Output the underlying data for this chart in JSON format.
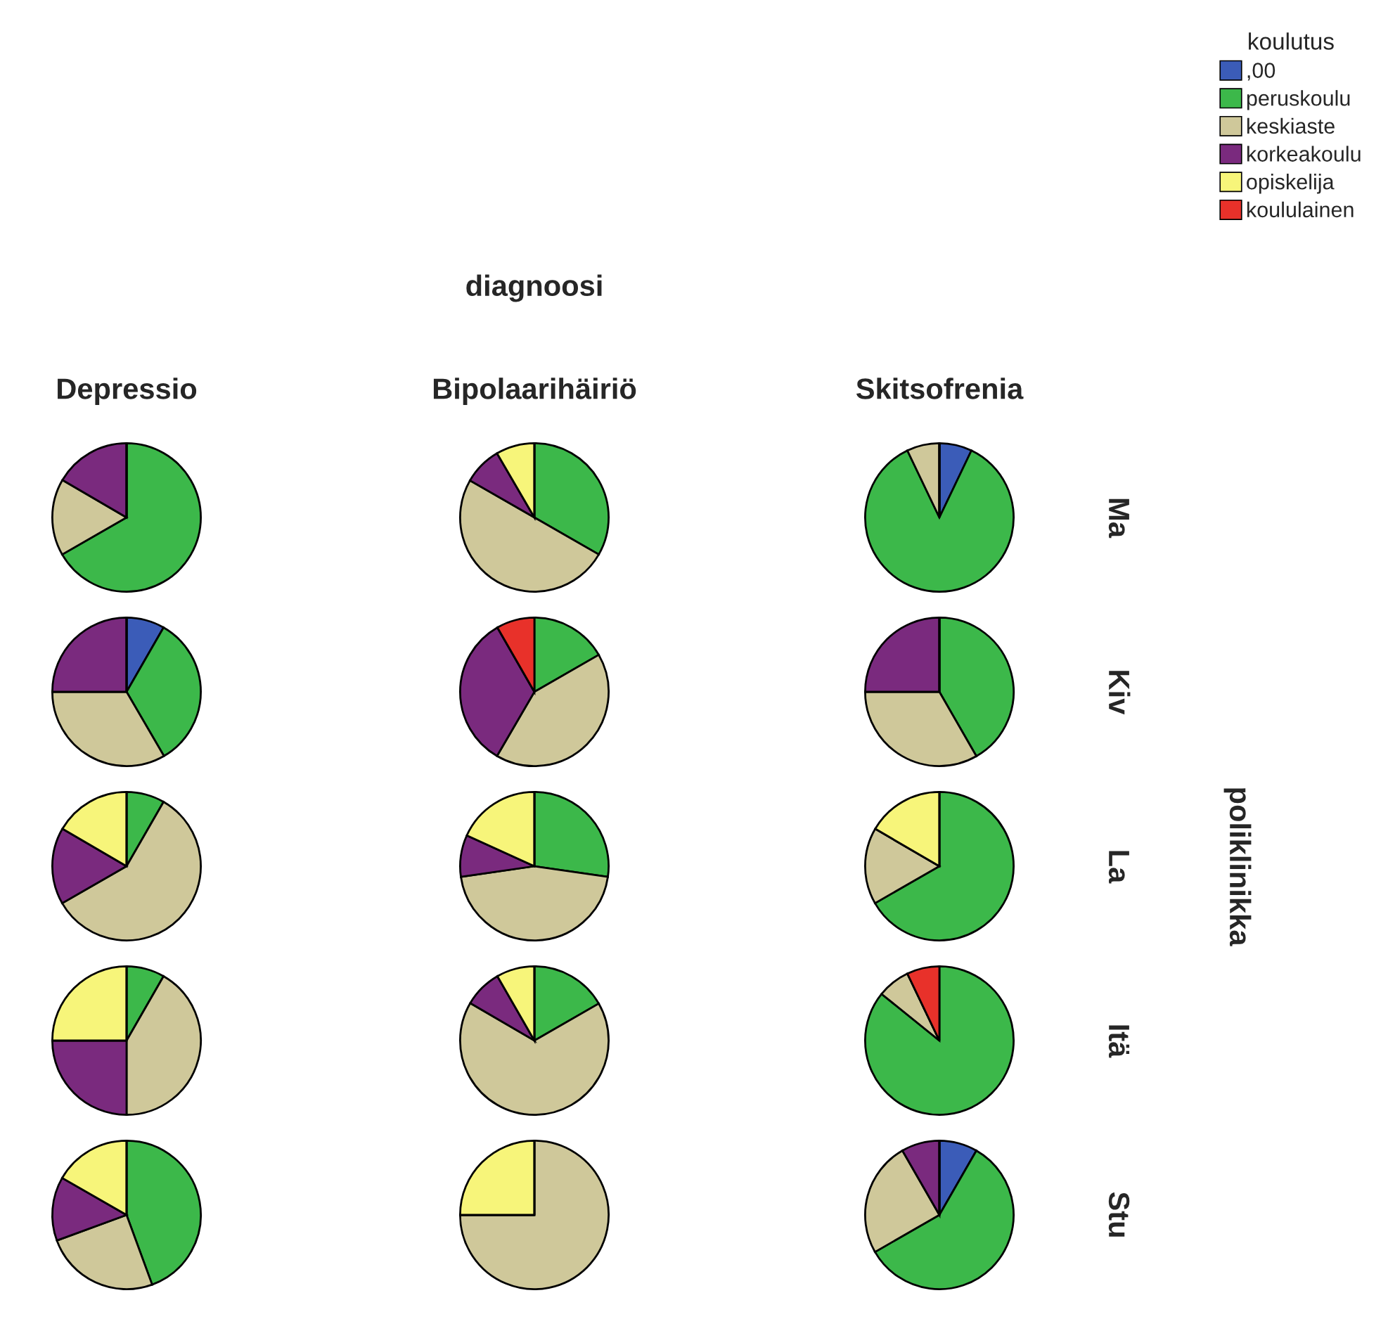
{
  "chart_data": [
    {
      "type": "pie",
      "title": "Depressio",
      "categories": [
        ",00",
        "peruskoulu",
        "keskiaste",
        "korkeakoulu",
        "opiskelija",
        "koululainen"
      ],
      "values": [
        0,
        66.7,
        16.7,
        16.6,
        0,
        0
      ],
      "colors": [
        "#3b5cb8",
        "#3cb84a",
        "#cfc89a",
        "#7a2a7e",
        "#f7f57a",
        "#e8312a"
      ],
      "legend": "top right",
      "legend_title": "koulutus",
      "annotations": [
        "diagnoosi",
        "poliklinikka"
      ]
    },
    {
      "type": "pie",
      "title": "Bipolaarihäiriö",
      "categories": [
        null,
        null,
        null,
        null,
        null,
        null
      ],
      "values": [
        0,
        33.3,
        50,
        8.3,
        8.4,
        0
      ],
      "colors": [
        "#3b5cb8",
        "#3cb84a",
        "#cfc89a",
        "#7a2a7e",
        "#f7f57a",
        "#e8312a"
      ]
    },
    {
      "type": "pie",
      "title": "Skitsofrenia",
      "y2label": "Ma",
      "categories": [
        null,
        null,
        null,
        null,
        null,
        null
      ],
      "values": [
        7.1,
        85.8,
        7.1,
        0,
        0,
        0
      ],
      "colors": [
        "#3b5cb8",
        "#3cb84a",
        "#cfc89a",
        "#7a2a7e",
        "#f7f57a",
        "#e8312a"
      ]
    },
    {
      "type": "pie",
      "categories": [
        null,
        null,
        null,
        null,
        null,
        null
      ],
      "values": [
        8.3,
        33.3,
        33.4,
        25,
        0,
        0
      ],
      "colors": [
        "#3b5cb8",
        "#3cb84a",
        "#cfc89a",
        "#7a2a7e",
        "#f7f57a",
        "#e8312a"
      ]
    },
    {
      "type": "pie",
      "categories": [
        null,
        null,
        null,
        null,
        null,
        null
      ],
      "values": [
        0,
        16.7,
        41.7,
        33.3,
        0,
        8.3
      ],
      "colors": [
        "#3b5cb8",
        "#3cb84a",
        "#cfc89a",
        "#7a2a7e",
        "#f7f57a",
        "#e8312a"
      ]
    },
    {
      "type": "pie",
      "y2label": "Kiv",
      "categories": [
        null,
        null,
        null,
        null,
        null,
        null
      ],
      "values": [
        0,
        41.7,
        33.3,
        25,
        0,
        0
      ],
      "colors": [
        "#3b5cb8",
        "#3cb84a",
        "#cfc89a",
        "#7a2a7e",
        "#f7f57a",
        "#e8312a"
      ]
    },
    {
      "type": "pie",
      "categories": [
        null,
        null,
        null,
        null,
        null,
        null
      ],
      "values": [
        0,
        8.3,
        58.4,
        16.7,
        16.6,
        0
      ],
      "colors": [
        "#3b5cb8",
        "#3cb84a",
        "#cfc89a",
        "#7a2a7e",
        "#f7f57a",
        "#e8312a"
      ]
    },
    {
      "type": "pie",
      "categories": [
        null,
        null,
        null,
        null,
        null,
        null
      ],
      "values": [
        0,
        27.3,
        45.4,
        9.1,
        18.2,
        0
      ],
      "colors": [
        "#3b5cb8",
        "#3cb84a",
        "#cfc89a",
        "#7a2a7e",
        "#f7f57a",
        "#e8312a"
      ]
    },
    {
      "type": "pie",
      "y2label": "La",
      "categories": [
        null,
        null,
        null,
        null,
        null,
        null
      ],
      "values": [
        0,
        66.7,
        16.7,
        0,
        16.6,
        0
      ],
      "colors": [
        "#3b5cb8",
        "#3cb84a",
        "#cfc89a",
        "#7a2a7e",
        "#f7f57a",
        "#e8312a"
      ]
    },
    {
      "type": "pie",
      "categories": [
        null,
        null,
        null,
        null,
        null,
        null
      ],
      "values": [
        0,
        8.3,
        41.7,
        25,
        25,
        0
      ],
      "colors": [
        "#3b5cb8",
        "#3cb84a",
        "#cfc89a",
        "#7a2a7e",
        "#f7f57a",
        "#e8312a"
      ]
    },
    {
      "type": "pie",
      "categories": [
        null,
        null,
        null,
        null,
        null,
        null
      ],
      "values": [
        0,
        16.7,
        66.7,
        8.3,
        8.3,
        0
      ],
      "colors": [
        "#3b5cb8",
        "#3cb84a",
        "#cfc89a",
        "#7a2a7e",
        "#f7f57a",
        "#e8312a"
      ]
    },
    {
      "type": "pie",
      "y2label": "Itä",
      "categories": [
        null,
        null,
        null,
        null,
        null,
        null
      ],
      "values": [
        0,
        85.8,
        7.1,
        0,
        0,
        7.1
      ],
      "colors": [
        "#3b5cb8",
        "#3cb84a",
        "#cfc89a",
        "#7a2a7e",
        "#f7f57a",
        "#e8312a"
      ]
    },
    {
      "type": "pie",
      "categories": [
        null,
        null,
        null,
        null,
        null,
        null
      ],
      "values": [
        0,
        44.4,
        25,
        13.9,
        16.7,
        0
      ],
      "colors": [
        "#3b5cb8",
        "#3cb84a",
        "#cfc89a",
        "#7a2a7e",
        "#f7f57a",
        "#e8312a"
      ]
    },
    {
      "type": "pie",
      "categories": [
        null,
        null,
        null,
        null,
        null,
        null
      ],
      "values": [
        0,
        0,
        75,
        0,
        25,
        0
      ],
      "colors": [
        "#3b5cb8",
        "#3cb84a",
        "#cfc89a",
        "#7a2a7e",
        "#f7f57a",
        "#e8312a"
      ]
    },
    {
      "type": "pie",
      "y2label": "Stu",
      "categories": [
        null,
        null,
        null,
        null,
        null,
        null
      ],
      "values": [
        8.3,
        58.4,
        25,
        8.3,
        0,
        0
      ],
      "colors": [
        "#3b5cb8",
        "#3cb84a",
        "#cfc89a",
        "#7a2a7e",
        "#f7f57a",
        "#e8312a"
      ]
    }
  ]
}
